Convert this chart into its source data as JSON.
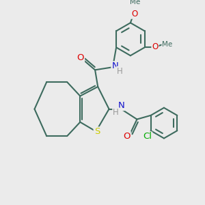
{
  "bg_color": "#ebebeb",
  "bond_color": "#3d6b5e",
  "bond_lw": 1.5,
  "atom_colors": {
    "O": "#dd0000",
    "N": "#1111cc",
    "S": "#cccc00",
    "Cl": "#00aa00",
    "H": "#999999"
  },
  "fs": 8.5,
  "fig_w": 3.0,
  "fig_h": 3.0,
  "dpi": 100
}
